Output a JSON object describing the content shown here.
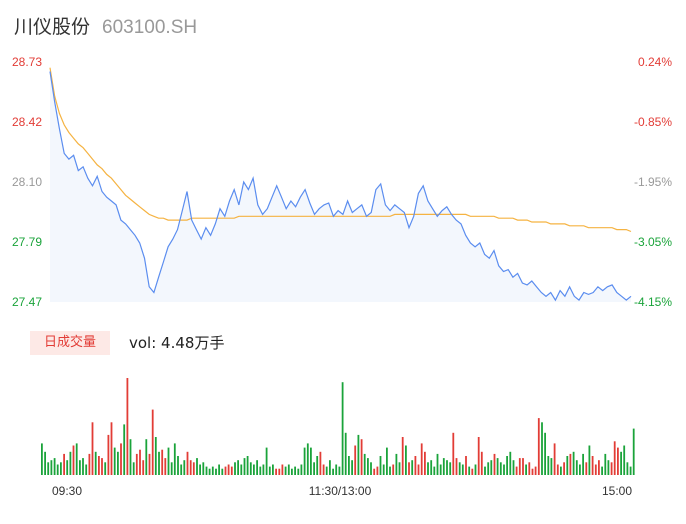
{
  "header": {
    "name": "川仪股份",
    "code": "603100.SH"
  },
  "colors": {
    "up": "#e23c36",
    "down": "#1aa33a",
    "neutral": "#999999",
    "price_line": "#5b8def",
    "avg_line": "#f5b342",
    "area": "#eef3fc"
  },
  "volume_panel": {
    "tag": "日成交量",
    "text": "vol: 4.48万手"
  },
  "chart_data": {
    "type": "line",
    "title": "",
    "price_axis": {
      "ticks": [
        "28.73",
        "28.42",
        "28.10",
        "27.79",
        "27.47"
      ],
      "ylim": [
        27.47,
        28.73
      ]
    },
    "pct_axis": {
      "ticks": [
        "0.24%",
        "-0.85%",
        "-1.95%",
        "-3.05%",
        "-4.15%"
      ]
    },
    "time_axis": {
      "ticks": [
        "09:30",
        "11:30/13:00",
        "15:00"
      ]
    },
    "series": [
      {
        "role": "price",
        "values": [
          28.68,
          28.52,
          28.38,
          28.25,
          28.22,
          28.24,
          28.16,
          28.18,
          28.12,
          28.08,
          28.13,
          28.05,
          28.02,
          28.0,
          27.98,
          27.9,
          27.88,
          27.85,
          27.82,
          27.78,
          27.7,
          27.55,
          27.52,
          27.6,
          27.68,
          27.76,
          27.8,
          27.85,
          27.95,
          28.05,
          27.9,
          27.85,
          27.8,
          27.86,
          27.82,
          27.88,
          27.96,
          27.92,
          28.0,
          28.06,
          27.98,
          28.1,
          28.06,
          28.12,
          27.98,
          27.93,
          27.96,
          28.02,
          28.08,
          28.02,
          27.96,
          28.0,
          27.97,
          28.02,
          28.06,
          27.99,
          27.93,
          27.96,
          27.98,
          27.99,
          27.92,
          27.95,
          27.93,
          28.0,
          27.94,
          27.96,
          27.98,
          27.92,
          27.94,
          28.06,
          28.09,
          27.98,
          27.95,
          27.98,
          27.96,
          27.94,
          27.86,
          27.92,
          28.04,
          28.08,
          28.0,
          27.96,
          27.92,
          27.95,
          27.97,
          27.93,
          27.9,
          27.88,
          27.82,
          27.78,
          27.76,
          27.78,
          27.72,
          27.7,
          27.74,
          27.66,
          27.63,
          27.64,
          27.6,
          27.62,
          27.57,
          27.56,
          27.58,
          27.55,
          27.52,
          27.5,
          27.52,
          27.48,
          27.53,
          27.5,
          27.55,
          27.5,
          27.48,
          27.52,
          27.51,
          27.52,
          27.55,
          27.53,
          27.55,
          27.56,
          27.52,
          27.5,
          27.48,
          27.5
        ]
      },
      {
        "role": "average",
        "values": [
          28.7,
          28.55,
          28.46,
          28.4,
          28.36,
          28.33,
          28.3,
          28.28,
          28.25,
          28.22,
          28.19,
          28.17,
          28.14,
          28.12,
          28.09,
          28.06,
          28.03,
          28.01,
          27.99,
          27.97,
          27.95,
          27.93,
          27.92,
          27.91,
          27.91,
          27.9,
          27.9,
          27.9,
          27.9,
          27.9,
          27.91,
          27.91,
          27.91,
          27.91,
          27.91,
          27.91,
          27.91,
          27.91,
          27.91,
          27.91,
          27.92,
          27.92,
          27.92,
          27.92,
          27.92,
          27.92,
          27.92,
          27.92,
          27.92,
          27.92,
          27.92,
          27.92,
          27.92,
          27.92,
          27.92,
          27.92,
          27.92,
          27.92,
          27.92,
          27.92,
          27.92,
          27.92,
          27.92,
          27.92,
          27.92,
          27.92,
          27.92,
          27.92,
          27.92,
          27.92,
          27.92,
          27.92,
          27.92,
          27.93,
          27.93,
          27.93,
          27.93,
          27.93,
          27.93,
          27.93,
          27.93,
          27.93,
          27.93,
          27.93,
          27.93,
          27.93,
          27.93,
          27.93,
          27.93,
          27.92,
          27.92,
          27.92,
          27.92,
          27.92,
          27.92,
          27.91,
          27.91,
          27.91,
          27.91,
          27.9,
          27.9,
          27.9,
          27.89,
          27.89,
          27.89,
          27.89,
          27.88,
          27.88,
          27.88,
          27.88,
          27.87,
          27.87,
          27.87,
          27.87,
          27.86,
          27.86,
          27.86,
          27.86,
          27.86,
          27.86,
          27.85,
          27.85,
          27.85,
          27.84
        ]
      }
    ],
    "volume": {
      "values": [
        30,
        22,
        12,
        14,
        16,
        10,
        12,
        20,
        14,
        22,
        28,
        30,
        14,
        16,
        10,
        20,
        50,
        22,
        18,
        16,
        12,
        38,
        50,
        26,
        22,
        30,
        48,
        92,
        34,
        12,
        20,
        24,
        14,
        34,
        20,
        62,
        36,
        22,
        24,
        16,
        26,
        12,
        30,
        18,
        10,
        14,
        22,
        14,
        12,
        16,
        10,
        12,
        8,
        6,
        8,
        6,
        10,
        6,
        8,
        10,
        8,
        12,
        14,
        10,
        16,
        18,
        12,
        10,
        14,
        8,
        10,
        26,
        8,
        10,
        6,
        6,
        10,
        8,
        10,
        6,
        8,
        6,
        10,
        26,
        30,
        26,
        12,
        18,
        22,
        10,
        8,
        14,
        6,
        10,
        8,
        88,
        40,
        18,
        14,
        28,
        38,
        34,
        20,
        16,
        12,
        6,
        8,
        18,
        10,
        26,
        8,
        10,
        20,
        12,
        36,
        28,
        12,
        14,
        18,
        10,
        30,
        22,
        12,
        14,
        8,
        20,
        10,
        16,
        14,
        12,
        40,
        16,
        12,
        10,
        18,
        8,
        6,
        10,
        36,
        22,
        8,
        12,
        14,
        20,
        16,
        12,
        10,
        18,
        22,
        14,
        8,
        16,
        16,
        10,
        12,
        6,
        8,
        54,
        50,
        40,
        18,
        16,
        30,
        10,
        8,
        12,
        18,
        20,
        22,
        14,
        10,
        20,
        12,
        28,
        18,
        10,
        14,
        8,
        20,
        14,
        12,
        32,
        26,
        22,
        28,
        12,
        8,
        44
      ],
      "directions": "ddddddduddudddduuduuduuddududduuuduudduudddddduuuddddddddduuuddddddddddddduuuddddddddddduudddddddddududdduudddduddududuuuudddddddduuddududuudddudddddduuuduuuudddduudududddduduuuddduuu"
    }
  }
}
